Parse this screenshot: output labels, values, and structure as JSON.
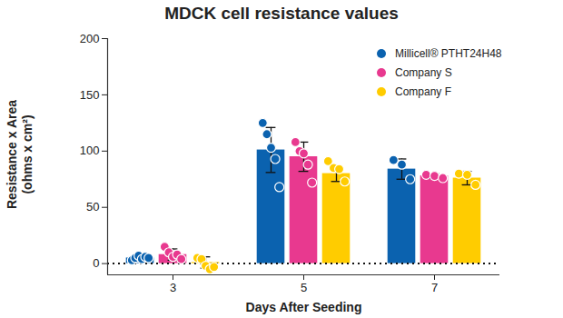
{
  "chart_data": {
    "type": "bar",
    "title": "MDCK cell resistance values",
    "x_label": "Days After Seeding",
    "y_label": "Resistance x Area\n(ohms x cm²)",
    "categories": [
      "3",
      "5",
      "7"
    ],
    "series": [
      {
        "name": "Millicell® PTHT24H48",
        "color": "#0b62af",
        "values": [
          5,
          101,
          84
        ],
        "errors": [
          2,
          20,
          9
        ],
        "points": [
          [
            3,
            5,
            7,
            4,
            6,
            5
          ],
          [
            125,
            115,
            103,
            93,
            68
          ],
          [
            92,
            88,
            75
          ]
        ]
      },
      {
        "name": "Company S",
        "color": "#e8398f",
        "values": [
          8,
          95,
          78
        ],
        "errors": [
          5,
          13,
          2
        ],
        "points": [
          [
            15,
            10,
            6,
            8,
            4
          ],
          [
            108,
            100,
            98,
            88,
            72
          ],
          [
            79,
            78,
            76
          ]
        ]
      },
      {
        "name": "Company F",
        "color": "#ffcc00",
        "values": [
          1,
          80,
          76
        ],
        "errors": [
          5,
          7,
          6
        ],
        "points": [
          [
            5,
            4,
            -2,
            -5,
            -3
          ],
          [
            91,
            85,
            84,
            73
          ],
          [
            80,
            79,
            70
          ]
        ]
      }
    ],
    "ylim": [
      -10,
      200
    ],
    "yticks": [
      0,
      50,
      100,
      150,
      200
    ],
    "legend": "top-right"
  }
}
